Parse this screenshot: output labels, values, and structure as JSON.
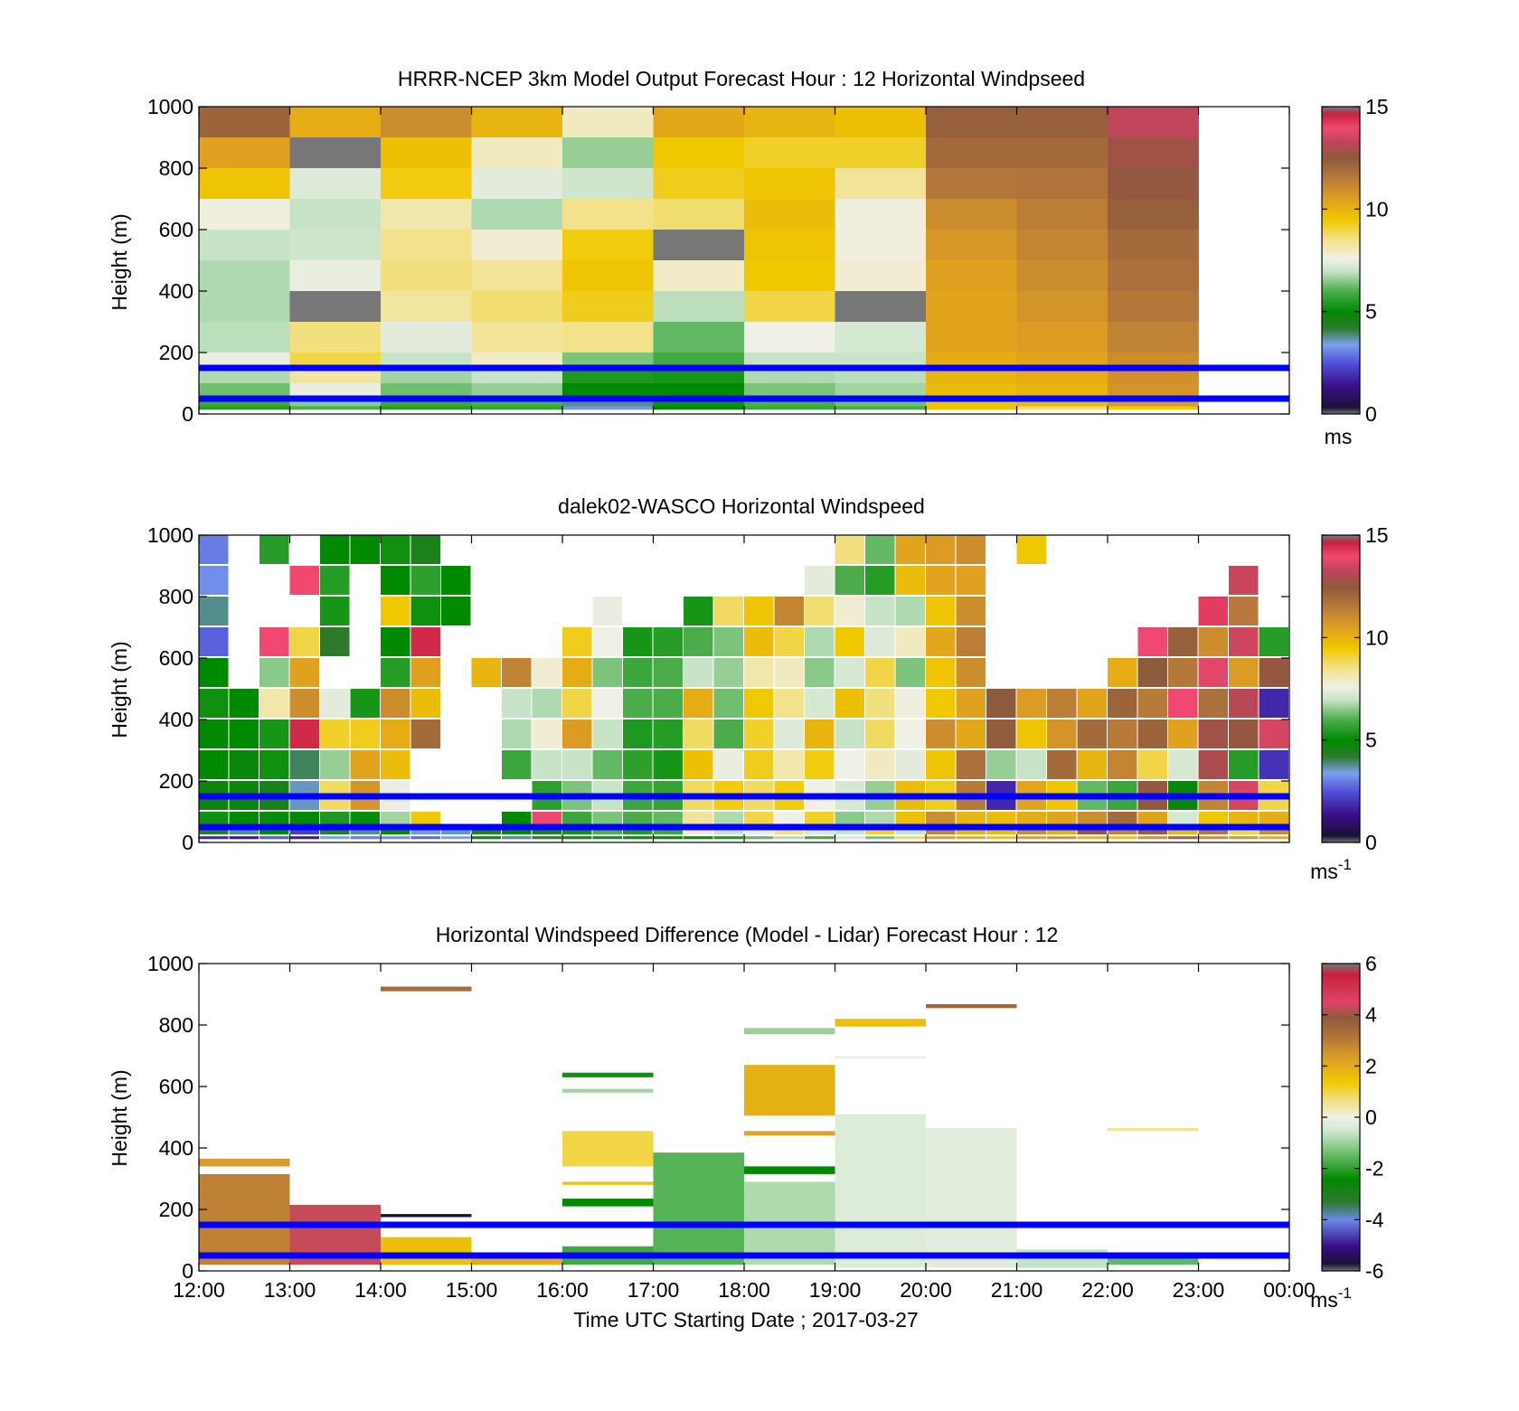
{
  "figure": {
    "xlabel": "Time UTC  Starting Date ; 2017-03-27",
    "time_ticks": [
      "12:00",
      "13:00",
      "14:00",
      "15:00",
      "16:00",
      "17:00",
      "18:00",
      "19:00",
      "20:00",
      "21:00",
      "22:00",
      "23:00",
      "00:00"
    ],
    "height_ticks": [
      "0",
      "200",
      "400",
      "600",
      "800",
      "1000"
    ],
    "reference_lines_m": [
      150,
      50
    ],
    "reference_line_color": "#0000ff"
  },
  "colormap": {
    "wind_stops": [
      {
        "v": 0,
        "c": "#777777"
      },
      {
        "v": 0.35,
        "c": "#1a1036"
      },
      {
        "v": 1.4,
        "c": "#3a0f8c"
      },
      {
        "v": 2.5,
        "c": "#5050d8"
      },
      {
        "v": 3.4,
        "c": "#7aa0ee"
      },
      {
        "v": 4.2,
        "c": "#2d7a2d"
      },
      {
        "v": 5.0,
        "c": "#008a00"
      },
      {
        "v": 6.0,
        "c": "#4aad4a"
      },
      {
        "v": 7.0,
        "c": "#c8e4c8"
      },
      {
        "v": 7.6,
        "c": "#f0f0e6"
      },
      {
        "v": 8.5,
        "c": "#f2e28c"
      },
      {
        "v": 9.5,
        "c": "#f0c800"
      },
      {
        "v": 10.5,
        "c": "#e0a020"
      },
      {
        "v": 11.5,
        "c": "#b87a3a"
      },
      {
        "v": 12.5,
        "c": "#8e5a3c"
      },
      {
        "v": 13.3,
        "c": "#c0445a"
      },
      {
        "v": 14.0,
        "c": "#f04870"
      },
      {
        "v": 14.65,
        "c": "#c8203c"
      },
      {
        "v": 15,
        "c": "#777777"
      }
    ],
    "diff_stops": [
      {
        "v": -6,
        "c": "#777777"
      },
      {
        "v": -5.7,
        "c": "#1a1036"
      },
      {
        "v": -5,
        "c": "#3a0f8c"
      },
      {
        "v": -4,
        "c": "#6a88e8"
      },
      {
        "v": -3.3,
        "c": "#2d7a2d"
      },
      {
        "v": -2.4,
        "c": "#008a00"
      },
      {
        "v": -1.4,
        "c": "#6abe6a"
      },
      {
        "v": -0.5,
        "c": "#d0e8d0"
      },
      {
        "v": 0,
        "c": "#f0f0e6"
      },
      {
        "v": 0.6,
        "c": "#f2e28c"
      },
      {
        "v": 1.4,
        "c": "#f0c800"
      },
      {
        "v": 2.3,
        "c": "#dca028"
      },
      {
        "v": 3.2,
        "c": "#b07238"
      },
      {
        "v": 3.9,
        "c": "#8e5a3c"
      },
      {
        "v": 4.5,
        "c": "#e04468"
      },
      {
        "v": 5.6,
        "c": "#c8203c"
      },
      {
        "v": 6,
        "c": "#777777"
      }
    ]
  },
  "panels": [
    {
      "title": "HRRR-NCEP 3km Model Output   Forecast Hour : 12 Horizontal Windpseed",
      "ylabel": "Height (m)",
      "colorbar": {
        "ticks": [
          "0",
          "5",
          "10",
          "15"
        ],
        "unit": "ms",
        "unit_sup": ""
      }
    },
    {
      "title": "dalek02-WASCO  Horizontal Windspeed",
      "ylabel": "Height (m)",
      "colorbar": {
        "ticks": [
          "0",
          "5",
          "10",
          "15"
        ],
        "unit": "ms",
        "unit_sup": "-1"
      }
    },
    {
      "title": "Horizontal Windspeed Difference (Model - Lidar) Forecast Hour : 12",
      "ylabel": "Height (m)",
      "colorbar": {
        "ticks": [
          "-6",
          "-4",
          "-2",
          "0",
          "2",
          "4",
          "6"
        ],
        "unit": "ms",
        "unit_sup": "-1"
      }
    }
  ],
  "chart_data": [
    {
      "type": "heatmap",
      "title": "HRRR-NCEP 3km Model Output   Forecast Hour : 12 Horizontal Windpseed",
      "ylabel": "Height (m)",
      "xlim": [
        "12:00",
        "00:00"
      ],
      "ylim": [
        0,
        1000
      ],
      "clim": [
        0,
        15
      ],
      "colorbar_unit": "ms",
      "height_levels": [
        1000,
        900,
        800,
        700,
        600,
        500,
        400,
        300,
        200,
        150,
        100,
        50,
        25
      ],
      "columns": [
        {
          "start": "12:00",
          "values": [
            12.2,
            10.5,
            9.6,
            7.7,
            7.0,
            6.8,
            6.8,
            6.9,
            7.5,
            6.8,
            6.3,
            5.8,
            5.5
          ]
        },
        {
          "start": "13:00",
          "values": [
            10.2,
            15.0,
            7.3,
            7.0,
            7.1,
            7.5,
            15.0,
            8.6,
            9.0,
            8.3,
            7.5,
            6.5,
            6.0
          ]
        },
        {
          "start": "14:00",
          "values": [
            11.0,
            9.7,
            9.4,
            8.2,
            8.5,
            8.6,
            8.3,
            7.4,
            7.0,
            6.7,
            6.3,
            5.8,
            5.5
          ]
        },
        {
          "start": "15:00",
          "values": [
            10.0,
            8.0,
            7.4,
            6.8,
            7.8,
            8.4,
            8.7,
            8.4,
            7.9,
            7.0,
            6.6,
            6.0,
            5.7
          ]
        },
        {
          "start": "16:00",
          "values": [
            8.0,
            6.6,
            7.1,
            8.5,
            9.4,
            9.6,
            9.3,
            8.5,
            6.4,
            5.4,
            5.0,
            3.8,
            3.5
          ]
        },
        {
          "start": "17:00",
          "values": [
            10.3,
            9.5,
            9.3,
            8.7,
            15.0,
            7.9,
            6.9,
            6.2,
            5.9,
            5.3,
            5.0,
            5.2,
            5.0
          ]
        },
        {
          "start": "18:00",
          "values": [
            10.0,
            9.2,
            9.6,
            9.8,
            9.6,
            9.5,
            9.0,
            7.6,
            7.0,
            6.8,
            6.4,
            6.0,
            5.8
          ]
        },
        {
          "start": "19:00",
          "values": [
            9.7,
            9.2,
            8.4,
            7.7,
            7.7,
            7.8,
            15.0,
            7.2,
            7.0,
            6.9,
            6.7,
            6.3,
            6.0
          ]
        },
        {
          "start": "20:00",
          "values": [
            12.3,
            12.0,
            11.6,
            11.0,
            10.7,
            10.5,
            10.4,
            10.4,
            10.2,
            10.0,
            9.8,
            9.6,
            9.6
          ]
        },
        {
          "start": "21:00",
          "values": [
            12.3,
            12.0,
            11.7,
            11.4,
            11.2,
            11.0,
            10.8,
            10.6,
            10.4,
            10.2,
            10.0,
            9.9,
            8.7
          ]
        },
        {
          "start": "22:00",
          "values": [
            13.3,
            12.8,
            12.6,
            12.3,
            12.0,
            11.8,
            11.6,
            11.3,
            11.0,
            10.9,
            10.8,
            10.6,
            9.4
          ]
        }
      ]
    },
    {
      "type": "heatmap",
      "title": "dalek02-WASCO  Horizontal Windspeed",
      "ylabel": "Height (m)",
      "xlim": [
        "12:00",
        "00:00"
      ],
      "ylim": [
        0,
        1000
      ],
      "clim": [
        0,
        15
      ],
      "colorbar_unit": "ms-1",
      "time_bins": [
        "12:00",
        "12:20",
        "12:40",
        "13:00",
        "13:20",
        "13:40",
        "14:00",
        "14:20",
        "14:40",
        "15:00",
        "15:20",
        "15:40",
        "16:00",
        "16:20",
        "16:40",
        "17:00",
        "17:20",
        "17:40",
        "18:00",
        "18:20",
        "18:40",
        "19:00",
        "19:20",
        "19:40",
        "20:00",
        "20:20",
        "20:40",
        "21:00",
        "21:20",
        "21:40",
        "22:00",
        "22:20",
        "22:40",
        "23:00",
        "23:20",
        "23:40"
      ],
      "height_bins": [
        1000,
        900,
        800,
        700,
        600,
        500,
        400,
        300,
        200,
        100,
        50,
        20
      ],
      "values": [
        [
          3.0,
          null,
          5.5,
          null,
          5.0,
          5.0,
          5.2,
          4.5,
          null,
          null,
          null,
          null,
          null,
          null,
          null,
          null,
          null,
          null,
          null,
          null,
          null,
          8.6,
          6.2,
          10.4,
          10.6,
          11.0,
          null,
          9.5,
          null,
          null,
          null,
          null,
          null,
          null,
          null,
          null
        ],
        [
          3.2,
          null,
          null,
          14.0,
          5.5,
          null,
          5.0,
          5.6,
          5.0,
          null,
          null,
          null,
          null,
          null,
          null,
          null,
          null,
          null,
          null,
          null,
          7.4,
          6.0,
          5.5,
          9.8,
          10.4,
          10.5,
          null,
          null,
          null,
          null,
          null,
          null,
          null,
          null,
          13.4,
          null
        ],
        [
          3.8,
          null,
          null,
          null,
          5.3,
          null,
          9.5,
          5.2,
          5.0,
          null,
          null,
          null,
          null,
          7.5,
          null,
          null,
          5.3,
          8.8,
          9.6,
          11.2,
          8.7,
          7.8,
          7.0,
          6.8,
          9.6,
          11.0,
          null,
          null,
          null,
          null,
          null,
          null,
          null,
          14.2,
          11.5,
          null
        ],
        [
          2.7,
          null,
          14.0,
          9.0,
          4.2,
          null,
          5.0,
          14.5,
          null,
          null,
          null,
          null,
          9.3,
          7.6,
          5.3,
          5.5,
          6.0,
          6.4,
          9.8,
          9.0,
          6.8,
          9.5,
          7.3,
          8.0,
          10.3,
          11.4,
          null,
          null,
          null,
          null,
          null,
          14.0,
          12.3,
          11.0,
          13.5,
          5.5
        ],
        [
          5.0,
          null,
          6.5,
          10.5,
          null,
          null,
          5.5,
          10.5,
          null,
          10.0,
          11.3,
          7.8,
          10.2,
          6.4,
          5.8,
          6.0,
          7.0,
          6.6,
          8.2,
          8.0,
          6.5,
          7.2,
          9.0,
          6.4,
          9.6,
          11.0,
          null,
          null,
          null,
          null,
          10.2,
          12.5,
          11.6,
          13.8,
          10.6,
          12.6
        ],
        [
          5.2,
          5.0,
          8.2,
          11.0,
          7.4,
          5.3,
          11.0,
          9.8,
          null,
          null,
          7.0,
          6.8,
          9.0,
          7.6,
          6.0,
          6.0,
          10.2,
          6.3,
          9.5,
          8.5,
          7.2,
          9.7,
          8.6,
          7.7,
          9.5,
          10.5,
          12.5,
          10.6,
          11.4,
          10.4,
          12.2,
          11.5,
          14.0,
          11.8,
          13.2,
          1.8
        ],
        [
          5.0,
          5.0,
          5.3,
          14.5,
          9.2,
          9.3,
          10.2,
          12.0,
          null,
          null,
          6.8,
          7.8,
          10.6,
          7.0,
          5.4,
          5.5,
          8.8,
          6.0,
          9.2,
          7.3,
          10.0,
          7.0,
          8.8,
          7.6,
          11.0,
          10.3,
          12.4,
          9.6,
          10.8,
          12.0,
          11.5,
          12.2,
          10.5,
          12.8,
          12.6,
          13.6
        ],
        [
          5.0,
          4.8,
          5.2,
          4.0,
          6.6,
          10.4,
          9.8,
          null,
          null,
          null,
          5.8,
          7.0,
          7.0,
          6.2,
          5.6,
          5.3,
          9.7,
          7.5,
          9.3,
          8.2,
          9.4,
          7.6,
          8.0,
          7.4,
          9.6,
          11.8,
          6.6,
          7.0,
          12.0,
          10.0,
          11.2,
          9.0,
          7.2,
          13.0,
          5.5,
          2.0
        ],
        [
          4.8,
          4.8,
          4.6,
          3.6,
          8.8,
          10.8,
          7.5,
          null,
          null,
          null,
          null,
          5.6,
          6.4,
          7.0,
          5.8,
          5.7,
          8.8,
          9.4,
          8.8,
          9.4,
          7.6,
          7.2,
          6.6,
          9.8,
          9.3,
          11.5,
          1.8,
          10.4,
          9.6,
          6.2,
          5.8,
          12.6,
          4.8,
          11.2,
          13.6,
          9.0
        ],
        [
          5.2,
          5.0,
          5.1,
          5.0,
          5.4,
          5.1,
          6.7,
          9.5,
          null,
          null,
          5.0,
          14.0,
          5.8,
          6.4,
          6.0,
          6.2,
          8.4,
          6.8,
          9.0,
          7.6,
          9.2,
          6.5,
          6.8,
          9.7,
          11.0,
          10.0,
          9.8,
          10.2,
          10.4,
          11.0,
          12.0,
          10.4,
          7.2,
          9.5,
          10.0,
          10.2
        ],
        [
          4.2,
          3.8,
          5.0,
          2.2,
          4.4,
          3.8,
          4.8,
          3.5,
          3.6,
          4.4,
          5.0,
          4.5,
          5.2,
          6.0,
          5.4,
          5.8,
          7.8,
          7.0,
          7.5,
          8.6,
          7.2,
          7.0,
          9.2,
          7.0,
          11.2,
          10.0,
          9.8,
          11.0,
          10.2,
          12.6,
          11.2,
          12.4,
          10.0,
          11.6,
          9.0,
          11.0
        ],
        [
          1.8,
          1.5,
          2.6,
          1.6,
          3.4,
          3.0,
          3.2,
          2.8,
          3.4,
          4.8,
          3.8,
          4.2,
          4.6,
          5.2,
          4.8,
          5.0,
          4.8,
          5.4,
          6.2,
          6.8,
          5.9,
          7.2,
          6.4,
          8.8,
          10.5,
          10.2,
          9.6,
          10.5,
          10.8,
          10.0,
          9.6,
          10.8,
          12.0,
          11.0,
          10.6,
          10.2
        ]
      ]
    },
    {
      "type": "heatmap",
      "title": "Horizontal Windspeed Difference (Model - Lidar) Forecast Hour : 12",
      "ylabel": "Height (m)",
      "xlim": [
        "12:00",
        "00:00"
      ],
      "ylim": [
        0,
        1000
      ],
      "clim": [
        -6,
        6
      ],
      "colorbar_unit": "ms-1",
      "segments": [
        {
          "start": "14:00",
          "bottom": 910,
          "top": 925,
          "value": 3.4
        },
        {
          "start": "12:00",
          "bottom": 340,
          "top": 365,
          "value": 2.4
        },
        {
          "start": "12:00",
          "bottom": 20,
          "top": 315,
          "value": 2.9
        },
        {
          "start": "13:00",
          "bottom": 20,
          "top": 215,
          "value": 4.3
        },
        {
          "start": "14:00",
          "bottom": 175,
          "top": 185,
          "value": -5.6
        },
        {
          "start": "14:00",
          "bottom": 20,
          "top": 110,
          "value": 1.6
        },
        {
          "start": "15:00",
          "bottom": 20,
          "top": 60,
          "value": 2.0
        },
        {
          "start": "16:00",
          "bottom": 630,
          "top": 645,
          "value": -2.3
        },
        {
          "start": "16:00",
          "bottom": 580,
          "top": 592,
          "value": -0.9
        },
        {
          "start": "16:00",
          "bottom": 340,
          "top": 455,
          "value": 1.0
        },
        {
          "start": "16:00",
          "bottom": 280,
          "top": 290,
          "value": 1.5
        },
        {
          "start": "16:00",
          "bottom": 210,
          "top": 235,
          "value": -2.4
        },
        {
          "start": "16:00",
          "bottom": 20,
          "top": 80,
          "value": -1.8
        },
        {
          "start": "17:00",
          "bottom": 20,
          "top": 385,
          "value": -1.6
        },
        {
          "start": "18:00",
          "bottom": 770,
          "top": 790,
          "value": -1.0
        },
        {
          "start": "18:00",
          "bottom": 505,
          "top": 670,
          "value": 1.9
        },
        {
          "start": "18:00",
          "bottom": 440,
          "top": 455,
          "value": 2.2
        },
        {
          "start": "18:00",
          "bottom": 315,
          "top": 340,
          "value": -2.4
        },
        {
          "start": "18:00",
          "bottom": 20,
          "top": 290,
          "value": -0.8
        },
        {
          "start": "19:00",
          "bottom": 795,
          "top": 820,
          "value": 1.6
        },
        {
          "start": "19:00",
          "bottom": 690,
          "top": 700,
          "value": 0.0
        },
        {
          "start": "19:00",
          "bottom": 10,
          "top": 510,
          "value": -0.3
        },
        {
          "start": "20:00",
          "bottom": 855,
          "top": 868,
          "value": 3.5
        },
        {
          "start": "20:00",
          "bottom": 10,
          "top": 465,
          "value": -0.2
        },
        {
          "start": "21:00",
          "bottom": 10,
          "top": 70,
          "value": -0.6
        },
        {
          "start": "22:00",
          "bottom": 455,
          "top": 465,
          "value": 0.5
        },
        {
          "start": "22:00",
          "bottom": 20,
          "top": 60,
          "value": -1.5
        }
      ]
    }
  ]
}
